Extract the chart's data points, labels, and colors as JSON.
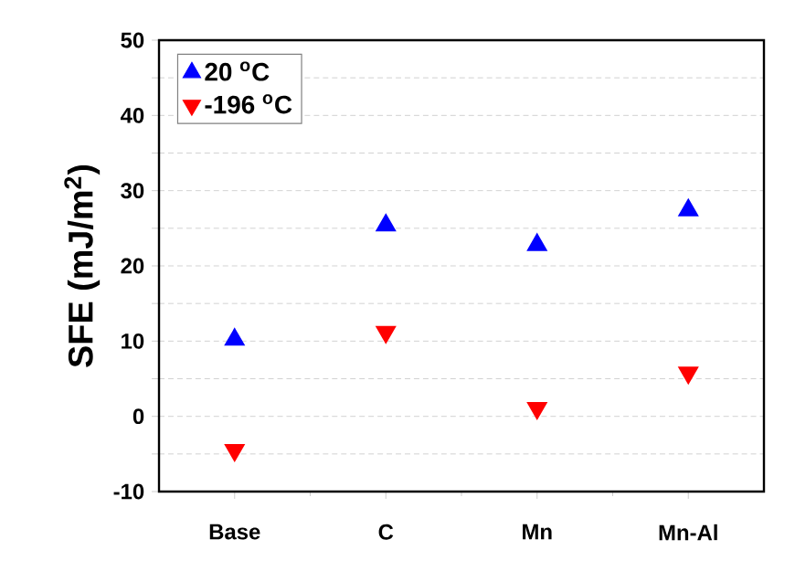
{
  "chart_data": {
    "type": "scatter",
    "ylabel": "SFE (mJ/m$^{2}$)",
    "categories": [
      "Base",
      "C",
      "Mn",
      "Mn-Al"
    ],
    "series": [
      {
        "name": "20 $^{o}$C",
        "color": "#0000ff",
        "marker": "triangle",
        "values": [
          10.2,
          25.4,
          22.8,
          27.4
        ]
      },
      {
        "name": "-196 $^{o}$C",
        "color": "#ff0000",
        "marker": "triangle-down",
        "values": [
          -4.5,
          11.2,
          1.1,
          5.8
        ]
      }
    ],
    "ylim": [
      -10,
      50
    ],
    "yticks": [
      -10,
      {
        "value": -5,
        "label": null
      },
      0,
      {
        "value": 5,
        "label": null
      },
      10,
      {
        "value": 15,
        "label": null
      },
      20,
      {
        "value": 25,
        "label": null
      },
      30,
      {
        "value": 35,
        "label": null
      },
      40,
      {
        "value": 45,
        "label": null
      },
      50
    ],
    "grid": "y",
    "legend": "top left"
  }
}
